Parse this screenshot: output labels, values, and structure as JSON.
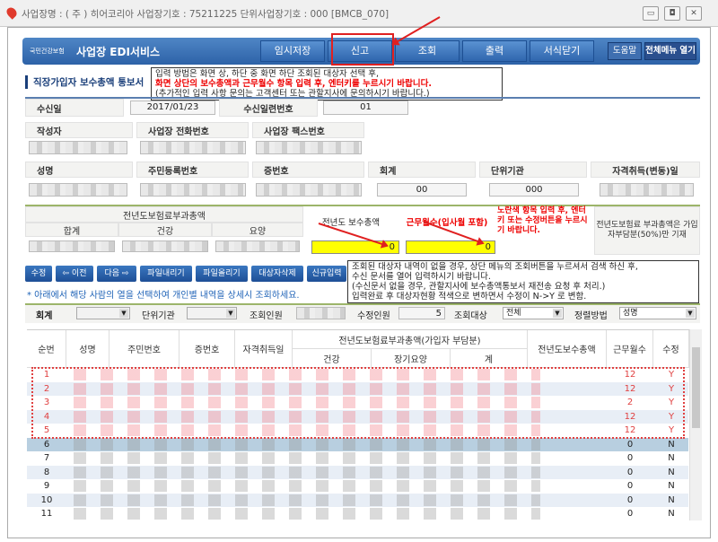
{
  "window": {
    "title": "사업장명 : ( 주 ) 히어코리아 사업장기호 : 75211225 단위사업장기호 : 000 [BMCB_070]",
    "controls": [
      "minimize",
      "restore",
      "close"
    ]
  },
  "header": {
    "logo": "국민건강보험",
    "service": "사업장 EDI서비스",
    "menu": [
      "임시저장",
      "신고",
      "조회",
      "출력",
      "서식닫기"
    ],
    "help": "도움말",
    "all_menu": "전체메뉴 열기",
    "highlighted_menu": "신고"
  },
  "notice1": {
    "line1": "입력 방법은 화면 상, 하단 중 화면 하단 조회된 대상자 선택 후,",
    "line2": "화면 상단의 보수총액과 근무월수 항목 입력 후, 엔터키를 누르시기 바랍니다.",
    "line3": "(추가적인 입력 사항 문의는 고객센터 또는 관할지사에 문의하시기 바랍니다.)"
  },
  "section_title": "직장가입자 보수총액 통보서",
  "form": {
    "receive_date_label": "수신일",
    "receive_date": "2017/01/23",
    "receive_serial_label": "수신일련번호",
    "receive_serial": "01",
    "writer_label": "작성자",
    "phone_label": "사업장 전화번호",
    "fax_label": "사업장 팩스번호",
    "name_label": "성명",
    "rrn_label": "주민등록번호",
    "cert_label": "증번호",
    "account_label": "회계",
    "account": "00",
    "unit_label": "단위기관",
    "unit": "000",
    "qual_label": "자격취득(변동)일"
  },
  "premium": {
    "title": "전년도보험료부과총액",
    "total": "합계",
    "health": "건강",
    "care": "요양",
    "salary_label": "전년도 보수총액",
    "salary": "0",
    "months_label": "근무월수(입사월 포함)",
    "months": "0",
    "yellow_note": "노란색 항목 입력 후, 엔터키 또는 수정버튼을 누르시기 바랍니다.",
    "half_note": "전년도보험료 부과총액은 가입자부담분(50%)만 기재"
  },
  "toolbar": {
    "buttons": [
      "수정",
      "⇦ 이전",
      "다음 ⇨",
      "파일내리기",
      "파일올리기",
      "대상자삭제",
      "신규입력"
    ],
    "hint": "* 아래에서 해당 사람의 열을 선택하여 개인별 내역을 상세시 조회하세요."
  },
  "notice2": {
    "line1": "조회된 대상자 내역이 없을 경우, 상단 메뉴의 조회버튼을 누르셔서 검색 하신 후,",
    "line2": "수신 문서를 열어 입력하시기 바랍니다.",
    "line3": "(수신문서 없을 경우, 관할지사에 보수총액통보서 재전송 요청 후 처리.)",
    "line4": "입력완료 후 대상자현황 적색으로 변하면서 수정이 N->Y 로 변함."
  },
  "filter": {
    "account_label": "회계",
    "unit_label": "단위기관",
    "query_count_label": "조회인원",
    "modified_count_label": "수정인원",
    "modified_count": "5",
    "target_label": "조회대상",
    "target": "전체",
    "sort_label": "정렬방법",
    "sort": "성명"
  },
  "table": {
    "headers": {
      "no": "순번",
      "name": "성명",
      "rrn": "주민번호",
      "cert": "증번호",
      "qual": "자격취득일",
      "premium_group": "전년도보험료부과총액(가입자 부담분)",
      "health": "건강",
      "care": "장기요양",
      "total": "계",
      "salary": "전년도보수총액",
      "months": "근무월수",
      "modified": "수정"
    },
    "rows": [
      {
        "no": "1",
        "months": "12",
        "mod": "Y"
      },
      {
        "no": "2",
        "months": "12",
        "mod": "Y"
      },
      {
        "no": "3",
        "months": "2",
        "mod": "Y"
      },
      {
        "no": "4",
        "months": "12",
        "mod": "Y"
      },
      {
        "no": "5",
        "months": "12",
        "mod": "Y"
      },
      {
        "no": "6",
        "months": "0",
        "mod": "N"
      },
      {
        "no": "7",
        "months": "0",
        "mod": "N"
      },
      {
        "no": "8",
        "months": "0",
        "mod": "N"
      },
      {
        "no": "9",
        "months": "0",
        "mod": "N"
      },
      {
        "no": "10",
        "months": "0",
        "mod": "N"
      },
      {
        "no": "11",
        "months": "0",
        "mod": "N"
      }
    ]
  },
  "colors": {
    "header_blue": "#2d62a8",
    "highlight_red": "#e02020",
    "input_yellow": "#ffff00",
    "modified_row_text": "#e04040",
    "selected_row": "#b8cfe0"
  }
}
